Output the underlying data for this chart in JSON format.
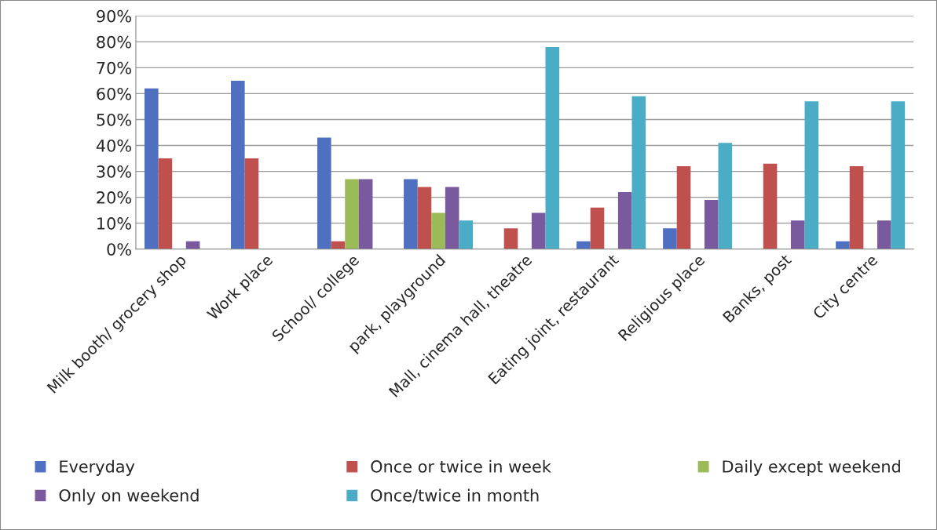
{
  "chart_data": {
    "type": "bar",
    "categories": [
      "Milk booth/ grocery shop",
      "Work place",
      "School/ college",
      "park, playground",
      "Mall, cinema hall, theatre",
      "Eating joint, restaurant",
      "Religious place",
      "Banks, post",
      "City centre"
    ],
    "series": [
      {
        "name": "Everyday",
        "color": "#4f6fc0",
        "values": [
          62,
          65,
          43,
          27,
          null,
          3,
          8,
          null,
          3
        ]
      },
      {
        "name": "Once or twice in week",
        "color": "#c0504d",
        "values": [
          35,
          35,
          3,
          24,
          8,
          16,
          32,
          33,
          32
        ]
      },
      {
        "name": "Daily except weekend",
        "color": "#9bbb59",
        "values": [
          null,
          null,
          27,
          14,
          null,
          null,
          null,
          null,
          null
        ]
      },
      {
        "name": "Only on weekend",
        "color": "#7a5a9e",
        "values": [
          3,
          null,
          27,
          24,
          14,
          22,
          19,
          11,
          11
        ]
      },
      {
        "name": "Once/twice in month",
        "color": "#4bacc6",
        "values": [
          null,
          null,
          null,
          11,
          78,
          59,
          41,
          57,
          57
        ]
      }
    ],
    "ylim": [
      0,
      90
    ],
    "yticks": [
      {
        "value": 0,
        "label": "0%"
      },
      {
        "value": 10,
        "label": "10%"
      },
      {
        "value": 20,
        "label": "20%"
      },
      {
        "value": 30,
        "label": "30%"
      },
      {
        "value": 40,
        "label": "40%"
      },
      {
        "value": 50,
        "label": "50%"
      },
      {
        "value": 60,
        "label": "60%"
      },
      {
        "value": 70,
        "label": "70%"
      },
      {
        "value": 80,
        "label": "80%"
      },
      {
        "value": 90,
        "label": "90%"
      }
    ],
    "grid": "y",
    "legend": "bottom"
  }
}
